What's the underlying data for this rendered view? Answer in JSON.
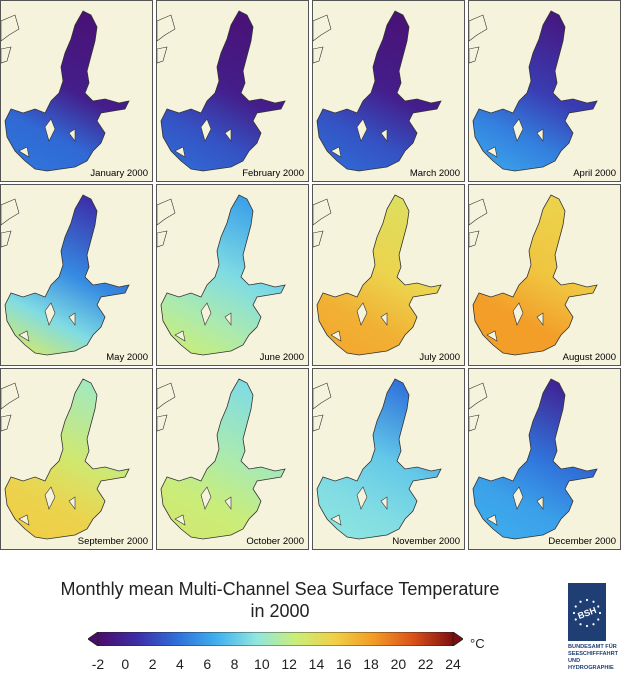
{
  "panels": [
    {
      "label": "January 2000",
      "mean_temp_c": -0.5,
      "north_temp_c": -1.5,
      "south_temp_c": 3.5,
      "southwest_temp_c": 4
    },
    {
      "label": "February 2000",
      "mean_temp_c": -0.5,
      "north_temp_c": -1.5,
      "south_temp_c": 2.5,
      "southwest_temp_c": 3.5
    },
    {
      "label": "March 2000",
      "mean_temp_c": -0.5,
      "north_temp_c": -1.5,
      "south_temp_c": 2.5,
      "southwest_temp_c": 3.5
    },
    {
      "label": "April 2000",
      "mean_temp_c": 1.5,
      "north_temp_c": -1,
      "south_temp_c": 4.5,
      "southwest_temp_c": 6
    },
    {
      "label": "May 2000",
      "mean_temp_c": 5,
      "north_temp_c": 1,
      "south_temp_c": 9,
      "southwest_temp_c": 13
    },
    {
      "label": "June 2000",
      "mean_temp_c": 9,
      "north_temp_c": 6,
      "south_temp_c": 11,
      "southwest_temp_c": 12.5
    },
    {
      "label": "July 2000",
      "mean_temp_c": 15,
      "north_temp_c": 14,
      "south_temp_c": 17,
      "southwest_temp_c": 17.5
    },
    {
      "label": "August 2000",
      "mean_temp_c": 16,
      "north_temp_c": 15,
      "south_temp_c": 18,
      "southwest_temp_c": 18
    },
    {
      "label": "September 2000",
      "mean_temp_c": 13,
      "north_temp_c": 10.5,
      "south_temp_c": 15,
      "southwest_temp_c": 15.5
    },
    {
      "label": "October 2000",
      "mean_temp_c": 11,
      "north_temp_c": 9,
      "south_temp_c": 12.5,
      "southwest_temp_c": 13
    },
    {
      "label": "November 2000",
      "mean_temp_c": 8,
      "north_temp_c": 4,
      "south_temp_c": 9,
      "southwest_temp_c": 9.5
    },
    {
      "label": "December 2000",
      "mean_temp_c": 4,
      "north_temp_c": 0,
      "south_temp_c": 6,
      "southwest_temp_c": 6.5
    }
  ],
  "title_line1": "Monthly mean Multi-Channel Sea Surface Temperature",
  "title_line2": "in 2000",
  "colorbar": {
    "min": -2,
    "max": 24,
    "ticks": [
      -2,
      0,
      2,
      4,
      6,
      8,
      10,
      12,
      14,
      16,
      18,
      20,
      22,
      24
    ],
    "unit": "°C",
    "colors": [
      "#4b0c6b",
      "#3d2ea8",
      "#2f6fd9",
      "#3fb0ee",
      "#8fe6e0",
      "#c9ee7a",
      "#f0d047",
      "#f29a26",
      "#d9511a",
      "#7f0f0f"
    ]
  },
  "logo": {
    "mark": "BSH",
    "lines": [
      "BUNDESAMT FÜR",
      "SEESCHIFFFAHRT",
      "UND",
      "HYDROGRAPHIE"
    ]
  },
  "colors": {
    "land": "#f6f3dc",
    "coast": "#333333"
  }
}
